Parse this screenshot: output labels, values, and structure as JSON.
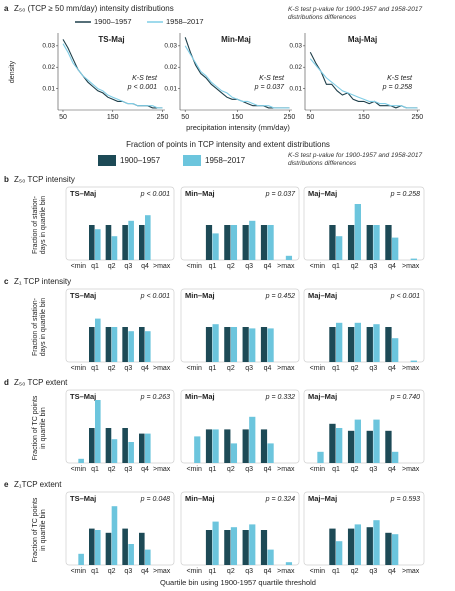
{
  "figure": {
    "heading": "Fraction of points in TCP intensity and extent distributions",
    "xlabel": "Quartile bin using 1900-1957 quartile threshold"
  },
  "panels": [
    {
      "label": "a",
      "title": "Z₅₀ (TCP ≥ 50 mm/day) intensity distributions",
      "note": "K-S test p-value for 1900-1957 and 1958-2017 distributions differences",
      "ylabel": "density",
      "xlabel": "precipitation intensity (mm/day)"
    },
    {
      "label": "b",
      "title": "Z₅₀ TCP intensity",
      "note": "K-S test p-value for 1900-1957 and 1958-2017 distributions differences",
      "ylabel": "Fraction of station-days in quartile bin"
    },
    {
      "label": "c",
      "title": "Z₁ TCP intensity",
      "ylabel": "Fraction of station-days in quartile bin"
    },
    {
      "label": "d",
      "title": "Z₅₀ TCP extent",
      "ylabel": "Fraction of TC points in quartile bin"
    },
    {
      "label": "e",
      "title": "Z₁TCP extent",
      "ylabel": "Fraction of TC points in quartile bin"
    }
  ],
  "chart_data": [
    {
      "type": "line",
      "title": "TS-Maj",
      "test": "K-S test",
      "pvalue": "p < 0.001",
      "xlim": [
        40,
        255
      ],
      "xticks": [
        50,
        150,
        250
      ],
      "ylim": [
        0,
        0.036
      ],
      "yticks": [
        0.01,
        0.02,
        0.03
      ],
      "x": [
        50,
        60,
        70,
        80,
        90,
        100,
        110,
        120,
        130,
        140,
        150,
        160,
        170,
        180,
        190,
        200,
        210,
        220,
        230,
        240,
        250
      ],
      "series": [
        {
          "name": "1900–1957",
          "color": "#1e3f4a",
          "values": [
            0.033,
            0.029,
            0.024,
            0.019,
            0.016,
            0.013,
            0.011,
            0.009,
            0.008,
            0.006,
            0.005,
            0.004,
            0.004,
            0.003,
            0.003,
            0.002,
            0.002,
            0.002,
            0.001,
            0.001,
            0.001
          ]
        },
        {
          "name": "1958–2017",
          "color": "#7fcde6",
          "values": [
            0.031,
            0.027,
            0.022,
            0.019,
            0.016,
            0.014,
            0.012,
            0.01,
            0.009,
            0.007,
            0.006,
            0.005,
            0.004,
            0.003,
            0.003,
            0.002,
            0.002,
            0.002,
            0.002,
            0.001,
            0.001
          ]
        }
      ]
    },
    {
      "type": "line",
      "title": "Min-Maj",
      "test": "K-S test",
      "pvalue": "p = 0.037",
      "xlim": [
        40,
        255
      ],
      "xticks": [
        50,
        150,
        250
      ],
      "ylim": [
        0,
        0.036
      ],
      "yticks": [
        0.01,
        0.02,
        0.03
      ],
      "x": [
        50,
        60,
        70,
        80,
        90,
        100,
        110,
        120,
        130,
        140,
        150,
        160,
        170,
        180,
        190,
        200,
        210,
        220,
        230,
        240,
        250
      ],
      "series": [
        {
          "name": "1900–1957",
          "color": "#1e3f4a",
          "values": [
            0.034,
            0.027,
            0.021,
            0.017,
            0.015,
            0.012,
            0.01,
            0.008,
            0.006,
            0.005,
            0.005,
            0.004,
            0.003,
            0.002,
            0.002,
            0.002,
            0.001,
            0.001,
            0.001,
            0.001,
            0.001
          ]
        },
        {
          "name": "1958–2017",
          "color": "#7fcde6",
          "values": [
            0.03,
            0.026,
            0.022,
            0.018,
            0.016,
            0.013,
            0.011,
            0.009,
            0.008,
            0.006,
            0.005,
            0.004,
            0.004,
            0.003,
            0.002,
            0.002,
            0.002,
            0.001,
            0.001,
            0.001,
            0.001
          ]
        }
      ]
    },
    {
      "type": "line",
      "title": "Maj-Maj",
      "test": "K-S test",
      "pvalue": "p = 0.258",
      "xlim": [
        40,
        255
      ],
      "xticks": [
        50,
        150,
        250
      ],
      "ylim": [
        0,
        0.036
      ],
      "yticks": [
        0.01,
        0.02,
        0.03
      ],
      "x": [
        50,
        60,
        70,
        80,
        90,
        100,
        110,
        120,
        130,
        140,
        150,
        160,
        170,
        180,
        190,
        200,
        210,
        220,
        230,
        240,
        250
      ],
      "series": [
        {
          "name": "1900–1957",
          "color": "#1e3f4a",
          "values": [
            0.027,
            0.022,
            0.018,
            0.012,
            0.012,
            0.009,
            0.007,
            0.008,
            0.005,
            0.004,
            0.004,
            0.003,
            0.004,
            0.002,
            0.002,
            0.002,
            0.001,
            0.002,
            0.001,
            0.001,
            0.001
          ]
        },
        {
          "name": "1958–2017",
          "color": "#7fcde6",
          "values": [
            0.024,
            0.021,
            0.018,
            0.015,
            0.013,
            0.011,
            0.009,
            0.008,
            0.007,
            0.006,
            0.005,
            0.004,
            0.004,
            0.003,
            0.003,
            0.002,
            0.002,
            0.002,
            0.001,
            0.001,
            0.001
          ]
        }
      ]
    },
    {
      "type": "bar",
      "title": "TS–Maj",
      "pvalue": "p < 0.001",
      "ylim": [
        0,
        0.5
      ],
      "categories": [
        "<min",
        "q1",
        "q2",
        "q3",
        "q4",
        ">max"
      ],
      "series": [
        {
          "name": "1900–1957",
          "color": "#1d4a56",
          "values": [
            0,
            0.25,
            0.25,
            0.25,
            0.25,
            0
          ]
        },
        {
          "name": "1958–2017",
          "color": "#6cc5dd",
          "values": [
            0,
            0.22,
            0.17,
            0.28,
            0.32,
            0
          ]
        }
      ]
    },
    {
      "type": "bar",
      "title": "Min–Maj",
      "pvalue": "p = 0.037",
      "ylim": [
        0,
        0.5
      ],
      "categories": [
        "<min",
        "q1",
        "q2",
        "q3",
        "q4",
        ">max"
      ],
      "series": [
        {
          "name": "1900–1957",
          "color": "#1d4a56",
          "values": [
            0,
            0.25,
            0.25,
            0.25,
            0.25,
            0
          ]
        },
        {
          "name": "1958–2017",
          "color": "#6cc5dd",
          "values": [
            0,
            0.19,
            0.25,
            0.28,
            0.25,
            0.03
          ]
        }
      ]
    },
    {
      "type": "bar",
      "title": "Maj–Maj",
      "pvalue": "p = 0.258",
      "ylim": [
        0,
        0.5
      ],
      "categories": [
        "<min",
        "q1",
        "q2",
        "q3",
        "q4",
        ">max"
      ],
      "series": [
        {
          "name": "1900–1957",
          "color": "#1d4a56",
          "values": [
            0,
            0.25,
            0.25,
            0.25,
            0.25,
            0
          ]
        },
        {
          "name": "1958–2017",
          "color": "#6cc5dd",
          "values": [
            0,
            0.17,
            0.4,
            0.25,
            0.16,
            0.01
          ]
        }
      ]
    },
    {
      "type": "bar",
      "title": "TS–Maj",
      "pvalue": "p < 0.001",
      "ylim": [
        0,
        0.5
      ],
      "categories": [
        "<min",
        "q1",
        "q2",
        "q3",
        "q4",
        ">max"
      ],
      "series": [
        {
          "name": "1900–1957",
          "color": "#1d4a56",
          "values": [
            0,
            0.25,
            0.25,
            0.25,
            0.25,
            0
          ]
        },
        {
          "name": "1958–2017",
          "color": "#6cc5dd",
          "values": [
            0,
            0.31,
            0.25,
            0.22,
            0.22,
            0
          ]
        }
      ]
    },
    {
      "type": "bar",
      "title": "Min–Maj",
      "pvalue": "p = 0.452",
      "ylim": [
        0,
        0.5
      ],
      "categories": [
        "<min",
        "q1",
        "q2",
        "q3",
        "q4",
        ">max"
      ],
      "series": [
        {
          "name": "1900–1957",
          "color": "#1d4a56",
          "values": [
            0,
            0.25,
            0.25,
            0.25,
            0.25,
            0
          ]
        },
        {
          "name": "1958–2017",
          "color": "#6cc5dd",
          "values": [
            0,
            0.27,
            0.25,
            0.24,
            0.24,
            0
          ]
        }
      ]
    },
    {
      "type": "bar",
      "title": "Maj–Maj",
      "pvalue": "p < 0.001",
      "ylim": [
        0,
        0.5
      ],
      "categories": [
        "<min",
        "q1",
        "q2",
        "q3",
        "q4",
        ">max"
      ],
      "series": [
        {
          "name": "1900–1957",
          "color": "#1d4a56",
          "values": [
            0,
            0.25,
            0.25,
            0.25,
            0.25,
            0
          ]
        },
        {
          "name": "1958–2017",
          "color": "#6cc5dd",
          "values": [
            0,
            0.28,
            0.28,
            0.27,
            0.17,
            0.01
          ]
        }
      ]
    },
    {
      "type": "bar",
      "title": "TS–Maj",
      "pvalue": "p = 0.263",
      "ylim": [
        0,
        0.5
      ],
      "categories": [
        "<min",
        "q1",
        "q2",
        "q3",
        "q4",
        ">max"
      ],
      "series": [
        {
          "name": "1900–1957",
          "color": "#1d4a56",
          "values": [
            0,
            0.25,
            0.25,
            0.25,
            0.21,
            0
          ]
        },
        {
          "name": "1958–2017",
          "color": "#6cc5dd",
          "values": [
            0.03,
            0.45,
            0.17,
            0.15,
            0.21,
            0
          ]
        }
      ]
    },
    {
      "type": "bar",
      "title": "Min–Maj",
      "pvalue": "p = 0.332",
      "ylim": [
        0,
        0.5
      ],
      "categories": [
        "<min",
        "q1",
        "q2",
        "q3",
        "q4",
        ">max"
      ],
      "series": [
        {
          "name": "1900–1957",
          "color": "#1d4a56",
          "values": [
            0,
            0.24,
            0.24,
            0.24,
            0.24,
            0
          ]
        },
        {
          "name": "1958–2017",
          "color": "#6cc5dd",
          "values": [
            0.19,
            0.24,
            0.14,
            0.33,
            0.14,
            0
          ]
        }
      ]
    },
    {
      "type": "bar",
      "title": "Maj–Maj",
      "pvalue": "p = 0.740",
      "ylim": [
        0,
        0.5
      ],
      "categories": [
        "<min",
        "q1",
        "q2",
        "q3",
        "q4",
        ">max"
      ],
      "series": [
        {
          "name": "1900–1957",
          "color": "#1d4a56",
          "values": [
            0,
            0.28,
            0.23,
            0.23,
            0.23,
            0
          ]
        },
        {
          "name": "1958–2017",
          "color": "#6cc5dd",
          "values": [
            0.08,
            0.25,
            0.31,
            0.31,
            0.08,
            0
          ]
        }
      ]
    },
    {
      "type": "bar",
      "title": "TS–Maj",
      "pvalue": "p = 0.048",
      "ylim": [
        0,
        0.5
      ],
      "categories": [
        "<min",
        "q1",
        "q2",
        "q3",
        "q4",
        ">max"
      ],
      "series": [
        {
          "name": "1900–1957",
          "color": "#1d4a56",
          "values": [
            0,
            0.26,
            0.23,
            0.26,
            0.23,
            0
          ]
        },
        {
          "name": "1958–2017",
          "color": "#6cc5dd",
          "values": [
            0.08,
            0.25,
            0.42,
            0.15,
            0.11,
            0
          ]
        }
      ]
    },
    {
      "type": "bar",
      "title": "Min–Maj",
      "pvalue": "p = 0.324",
      "ylim": [
        0,
        0.5
      ],
      "categories": [
        "<min",
        "q1",
        "q2",
        "q3",
        "q4",
        ">max"
      ],
      "series": [
        {
          "name": "1900–1957",
          "color": "#1d4a56",
          "values": [
            0,
            0.25,
            0.25,
            0.25,
            0.25,
            0
          ]
        },
        {
          "name": "1958–2017",
          "color": "#6cc5dd",
          "values": [
            0,
            0.31,
            0.27,
            0.29,
            0.11,
            0.02
          ]
        }
      ]
    },
    {
      "type": "bar",
      "title": "Maj–Maj",
      "pvalue": "p = 0.593",
      "ylim": [
        0,
        0.5
      ],
      "categories": [
        "<min",
        "q1",
        "q2",
        "q3",
        "q4",
        ">max"
      ],
      "series": [
        {
          "name": "1900–1957",
          "color": "#1d4a56",
          "values": [
            0,
            0.26,
            0.26,
            0.27,
            0.23,
            0
          ]
        },
        {
          "name": "1958–2017",
          "color": "#6cc5dd",
          "values": [
            0,
            0.17,
            0.29,
            0.32,
            0.22,
            0
          ]
        }
      ]
    }
  ]
}
